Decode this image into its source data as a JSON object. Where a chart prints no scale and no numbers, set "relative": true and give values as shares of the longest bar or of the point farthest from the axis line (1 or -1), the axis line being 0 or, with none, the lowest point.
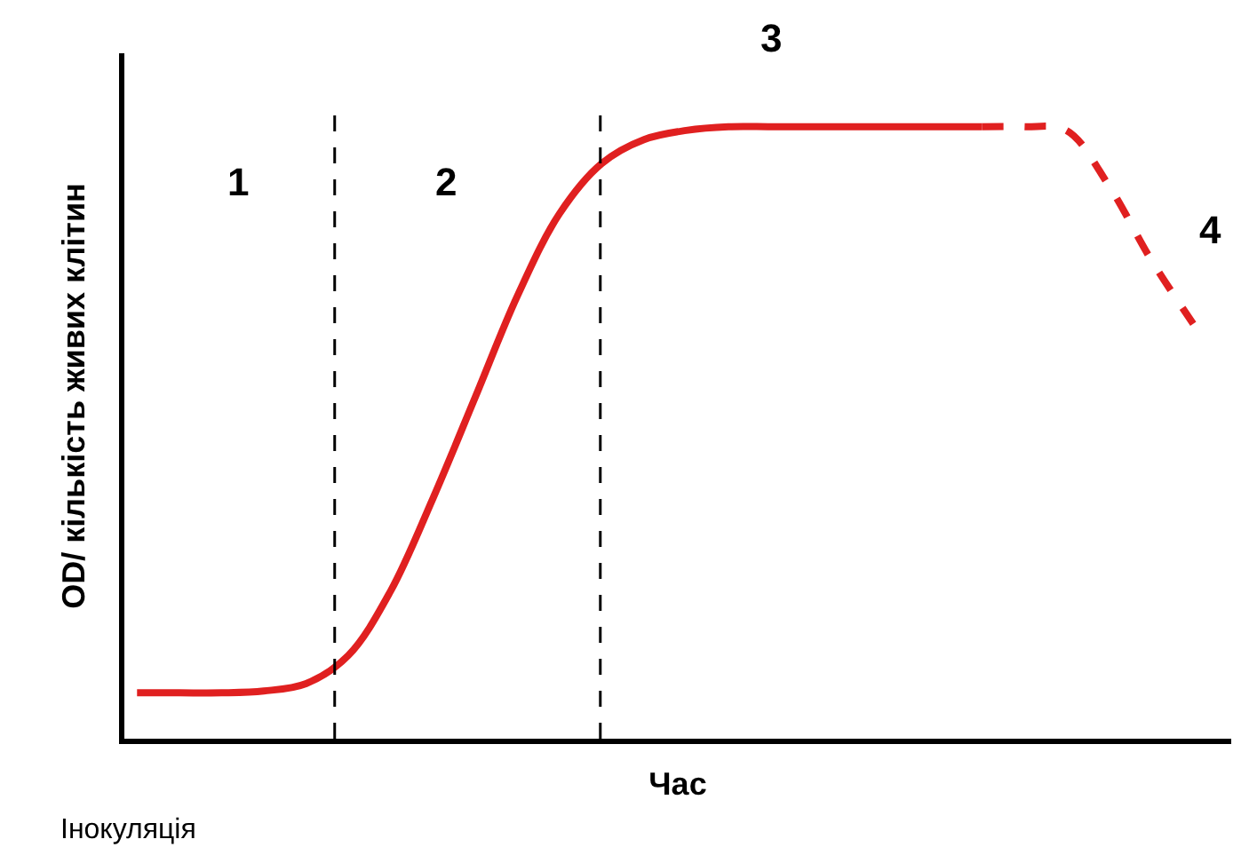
{
  "chart_data": {
    "type": "line",
    "relative": true,
    "xlabel": "Час",
    "ylabel": "OD/ кількість живих клітин",
    "categories": [
      null,
      null,
      null,
      null,
      null,
      null,
      null,
      null,
      null,
      null,
      null,
      null,
      null,
      null,
      null,
      null,
      null,
      null,
      null,
      null,
      null,
      null,
      null,
      null,
      null,
      null
    ],
    "series": [
      {
        "color": "#e02020",
        "line_style": "solid",
        "values": [
          0.075,
          0.075,
          0.075,
          0.078,
          0.09,
          0.136,
          0.241,
          0.392,
          0.557,
          0.723,
          0.858,
          0.94,
          0.979,
          0.994,
          1,
          1,
          1,
          1,
          1,
          1,
          1,
          null,
          null,
          null,
          null,
          null
        ]
      },
      {
        "color": "#e02020",
        "line_style": "dashed",
        "values": [
          null,
          null,
          null,
          null,
          null,
          null,
          null,
          null,
          null,
          null,
          null,
          null,
          null,
          null,
          null,
          null,
          null,
          null,
          null,
          null,
          1,
          1,
          0.994,
          0.904,
          0.783,
          0.678
        ]
      }
    ],
    "annotations": [
      "1",
      "2",
      "3",
      "4",
      "Інокуляція"
    ],
    "legend": false,
    "marker": "none"
  }
}
